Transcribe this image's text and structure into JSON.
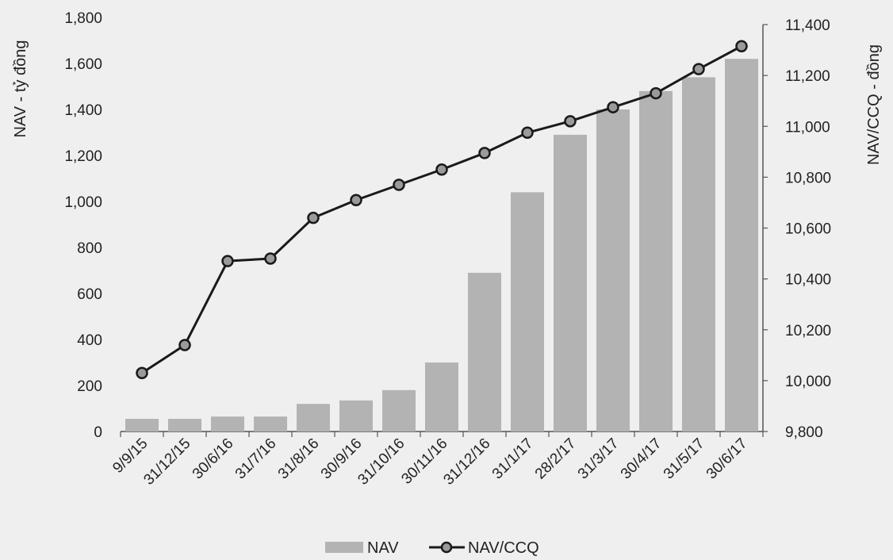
{
  "chart_data": {
    "type": "bar+line",
    "categories": [
      "9/9/15",
      "31/12/15",
      "30/6/16",
      "31/7/16",
      "31/8/16",
      "30/9/16",
      "31/10/16",
      "30/11/16",
      "31/12/16",
      "31/1/17",
      "28/2/17",
      "31/3/17",
      "30/4/17",
      "31/5/17",
      "30/6/17"
    ],
    "series": [
      {
        "name": "NAV",
        "kind": "bar",
        "axis": "left",
        "color": "#b3b3b3",
        "values": [
          55,
          55,
          65,
          65,
          120,
          135,
          180,
          300,
          690,
          1040,
          1290,
          1400,
          1480,
          1540,
          1620
        ]
      },
      {
        "name": "NAV/CCQ",
        "kind": "line",
        "axis": "right",
        "color": "#1a1a1a",
        "marker_fill": "#9a9a9a",
        "values": [
          10030,
          10140,
          10470,
          10480,
          10640,
          10710,
          10770,
          10830,
          10895,
          10975,
          11020,
          11075,
          11130,
          11225,
          11315
        ]
      }
    ],
    "ylabel": "NAV - tỷ đồng",
    "ylim": [
      0,
      1800
    ],
    "yticks": [
      "0",
      "200",
      "400",
      "600",
      "800",
      "1,000",
      "1,200",
      "1,400",
      "1,600",
      "1,800"
    ],
    "y2label": "NAV/CCQ - đồng",
    "y2lim": [
      9800,
      11400
    ],
    "y2ticks": [
      "9,800",
      "10,000",
      "10,200",
      "10,400",
      "10,600",
      "10,800",
      "11,000",
      "11,200",
      "11,400"
    ],
    "legend": {
      "position": "bottom",
      "items": [
        "NAV",
        "NAV/CCQ"
      ]
    },
    "grid": false
  }
}
